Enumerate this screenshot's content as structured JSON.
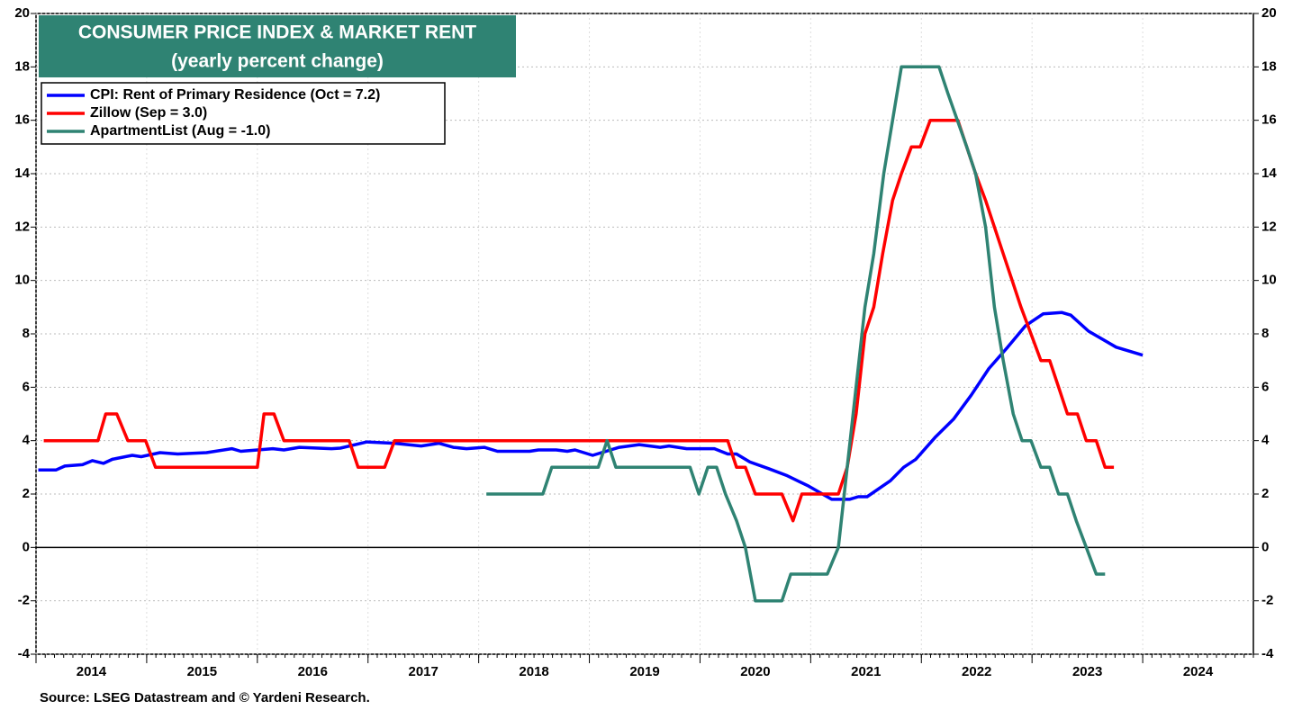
{
  "chart_data": {
    "type": "line",
    "title": "CONSUMER PRICE INDEX & MARKET RENT",
    "subtitle": "(yearly percent change)",
    "source": "Source: LSEG Datastream and © Yardeni Research.",
    "xlim": [
      2014,
      2025
    ],
    "xticks": [
      2014,
      2015,
      2016,
      2017,
      2018,
      2019,
      2020,
      2021,
      2022,
      2023,
      2024
    ],
    "ylim": [
      -4,
      20
    ],
    "yticks": [
      -4,
      -2,
      0,
      2,
      4,
      6,
      8,
      10,
      12,
      14,
      16,
      18,
      20
    ],
    "y2lim": [
      -4,
      20
    ],
    "y2ticks": [
      -4,
      -2,
      0,
      2,
      4,
      6,
      8,
      10,
      12,
      14,
      16,
      18,
      20
    ],
    "grid": true,
    "legend": "upper left",
    "series": [
      {
        "name": "CPI: Rent of Primary Residence (Oct = 7.2)",
        "color": "#0000ff",
        "x": [
          2014.02,
          2014.18,
          2014.26,
          2014.42,
          2014.51,
          2014.61,
          2014.69,
          2014.87,
          2014.95,
          2015.12,
          2015.28,
          2015.54,
          2015.77,
          2015.85,
          2016.14,
          2016.24,
          2016.38,
          2016.67,
          2016.75,
          2016.99,
          2017.24,
          2017.48,
          2017.64,
          2017.77,
          2017.89,
          2018.05,
          2018.17,
          2018.46,
          2018.54,
          2018.7,
          2018.8,
          2018.87,
          2019.03,
          2019.27,
          2019.45,
          2019.64,
          2019.72,
          2019.88,
          2020.13,
          2020.25,
          2020.33,
          2020.45,
          2020.62,
          2020.78,
          2020.98,
          2021.19,
          2021.35,
          2021.43,
          2021.51,
          2021.72,
          2021.84,
          2021.95,
          2022.13,
          2022.29,
          2022.45,
          2022.61,
          2022.78,
          2022.94,
          2023.1,
          2023.27,
          2023.35,
          2023.51,
          2023.76,
          2024.0
        ],
        "values": [
          2.9,
          2.9,
          3.05,
          3.1,
          3.25,
          3.15,
          3.3,
          3.45,
          3.4,
          3.55,
          3.5,
          3.55,
          3.7,
          3.6,
          3.7,
          3.65,
          3.75,
          3.7,
          3.72,
          3.95,
          3.9,
          3.8,
          3.9,
          3.75,
          3.7,
          3.75,
          3.6,
          3.6,
          3.65,
          3.65,
          3.6,
          3.65,
          3.45,
          3.75,
          3.85,
          3.75,
          3.8,
          3.7,
          3.7,
          3.5,
          3.5,
          3.2,
          2.95,
          2.7,
          2.3,
          1.8,
          1.8,
          1.9,
          1.9,
          2.5,
          3.0,
          3.3,
          4.15,
          4.8,
          5.7,
          6.7,
          7.5,
          8.3,
          8.75,
          8.8,
          8.7,
          8.1,
          7.5,
          7.2
        ]
      },
      {
        "name": "Zillow (Sep = 3.0)",
        "color": "#ff0000",
        "x": [
          2014.07,
          2014.56,
          2014.63,
          2014.73,
          2014.83,
          2014.99,
          2015.08,
          2016.0,
          2016.06,
          2016.15,
          2016.24,
          2016.83,
          2016.91,
          2017.15,
          2017.24,
          2020.25,
          2020.33,
          2020.41,
          2020.5,
          2020.74,
          2020.84,
          2020.92,
          2021.25,
          2021.33,
          2021.41,
          2021.49,
          2021.57,
          2021.65,
          2021.74,
          2021.82,
          2021.91,
          2021.99,
          2022.08,
          2022.33,
          2022.49,
          2022.58,
          2022.66,
          2022.74,
          2022.82,
          2022.9,
          2022.99,
          2023.08,
          2023.16,
          2023.24,
          2023.32,
          2023.41,
          2023.49,
          2023.58,
          2023.66,
          2023.74
        ],
        "values": [
          4,
          4,
          5,
          5,
          4,
          4,
          3,
          3,
          5,
          5,
          4,
          4,
          3,
          3,
          4,
          4,
          3,
          3,
          2,
          2,
          1,
          2,
          2,
          3,
          5,
          8,
          9,
          11,
          13,
          14,
          15,
          15,
          16,
          16,
          14,
          13,
          12,
          11,
          10,
          9,
          8,
          7,
          7,
          6,
          5,
          5,
          4,
          4,
          3,
          3
        ]
      },
      {
        "name": "ApartmentList (Aug = -1.0)",
        "color": "#2f8373",
        "x": [
          2018.07,
          2018.58,
          2018.66,
          2019.08,
          2019.16,
          2019.24,
          2019.91,
          2019.99,
          2020.07,
          2020.15,
          2020.23,
          2020.33,
          2020.41,
          2020.5,
          2020.74,
          2020.82,
          2021.15,
          2021.25,
          2021.33,
          2021.49,
          2021.57,
          2021.66,
          2021.74,
          2021.82,
          2022.16,
          2022.24,
          2022.41,
          2022.49,
          2022.58,
          2022.66,
          2022.74,
          2022.83,
          2022.91,
          2022.99,
          2023.08,
          2023.16,
          2023.24,
          2023.32,
          2023.4,
          2023.49,
          2023.58,
          2023.66
        ],
        "values": [
          2,
          2,
          3,
          3,
          4,
          3,
          3,
          2,
          3,
          3,
          2,
          1,
          0,
          -2,
          -2,
          -1,
          -1,
          0,
          3,
          9,
          11,
          14,
          16,
          18,
          18,
          17,
          15,
          14,
          12,
          9,
          7,
          5,
          4,
          4,
          3,
          3,
          2,
          2,
          1,
          0,
          -1,
          -1
        ]
      }
    ]
  }
}
